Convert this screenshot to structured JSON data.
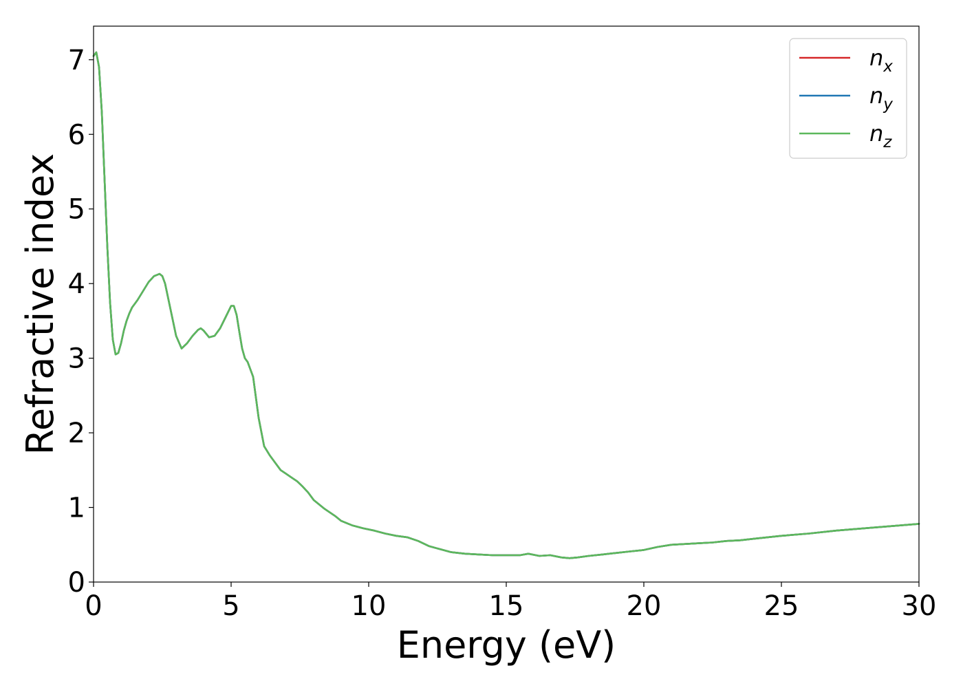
{
  "chart_data": {
    "type": "line",
    "xlabel": "Energy (eV)",
    "ylabel": "Refractive index",
    "xlim": [
      0,
      30
    ],
    "ylim": [
      0,
      7.45
    ],
    "xticks": [
      "0",
      "5",
      "10",
      "15",
      "20",
      "25",
      "30"
    ],
    "yticks": [
      "0",
      "1",
      "2",
      "3",
      "4",
      "5",
      "6",
      "7"
    ],
    "grid": false,
    "legend_position": "top-right",
    "x": [
      0,
      0.1,
      0.2,
      0.3,
      0.4,
      0.5,
      0.6,
      0.7,
      0.8,
      0.9,
      1.0,
      1.1,
      1.2,
      1.3,
      1.4,
      1.5,
      1.6,
      1.8,
      2.0,
      2.2,
      2.4,
      2.5,
      2.6,
      2.8,
      3.0,
      3.2,
      3.4,
      3.6,
      3.8,
      3.9,
      4.0,
      4.2,
      4.4,
      4.6,
      4.8,
      5.0,
      5.1,
      5.2,
      5.3,
      5.4,
      5.5,
      5.6,
      5.8,
      6.0,
      6.2,
      6.4,
      6.6,
      6.8,
      7.0,
      7.2,
      7.4,
      7.6,
      7.8,
      8.0,
      8.4,
      8.8,
      9.0,
      9.4,
      9.8,
      10.2,
      10.6,
      11.0,
      11.4,
      11.8,
      12.2,
      12.6,
      13.0,
      13.5,
      14.0,
      14.5,
      15.0,
      15.5,
      15.8,
      16.2,
      16.6,
      17.0,
      17.3,
      17.6,
      18.0,
      18.5,
      19.0,
      19.5,
      20.0,
      20.5,
      21.0,
      21.5,
      22.0,
      22.5,
      23.0,
      23.5,
      24.0,
      25.0,
      26.0,
      27.0,
      28.0,
      29.0,
      30.0
    ],
    "series": [
      {
        "name": "n_x",
        "label_base": "n",
        "label_sub": "x",
        "color": "#d62728",
        "values": [
          7.05,
          7.1,
          6.9,
          6.3,
          5.4,
          4.5,
          3.75,
          3.25,
          3.05,
          3.07,
          3.2,
          3.37,
          3.5,
          3.6,
          3.68,
          3.73,
          3.78,
          3.9,
          4.02,
          4.1,
          4.13,
          4.1,
          4.0,
          3.65,
          3.3,
          3.13,
          3.2,
          3.3,
          3.38,
          3.4,
          3.37,
          3.28,
          3.3,
          3.4,
          3.55,
          3.7,
          3.7,
          3.58,
          3.35,
          3.13,
          3.0,
          2.95,
          2.75,
          2.2,
          1.82,
          1.7,
          1.6,
          1.5,
          1.45,
          1.4,
          1.35,
          1.28,
          1.2,
          1.1,
          0.98,
          0.88,
          0.82,
          0.76,
          0.72,
          0.69,
          0.65,
          0.62,
          0.6,
          0.55,
          0.48,
          0.44,
          0.4,
          0.38,
          0.37,
          0.36,
          0.36,
          0.36,
          0.38,
          0.35,
          0.36,
          0.33,
          0.32,
          0.33,
          0.35,
          0.37,
          0.39,
          0.41,
          0.43,
          0.47,
          0.5,
          0.51,
          0.52,
          0.53,
          0.55,
          0.56,
          0.58,
          0.62,
          0.65,
          0.69,
          0.72,
          0.75,
          0.78
        ]
      },
      {
        "name": "n_y",
        "label_base": "n",
        "label_sub": "y",
        "color": "#1f77b4",
        "values": [
          7.05,
          7.1,
          6.9,
          6.3,
          5.4,
          4.5,
          3.75,
          3.25,
          3.05,
          3.07,
          3.2,
          3.37,
          3.5,
          3.6,
          3.68,
          3.73,
          3.78,
          3.9,
          4.02,
          4.1,
          4.13,
          4.1,
          4.0,
          3.65,
          3.3,
          3.13,
          3.2,
          3.3,
          3.38,
          3.4,
          3.37,
          3.28,
          3.3,
          3.4,
          3.55,
          3.7,
          3.7,
          3.58,
          3.35,
          3.13,
          3.0,
          2.95,
          2.75,
          2.2,
          1.82,
          1.7,
          1.6,
          1.5,
          1.45,
          1.4,
          1.35,
          1.28,
          1.2,
          1.1,
          0.98,
          0.88,
          0.82,
          0.76,
          0.72,
          0.69,
          0.65,
          0.62,
          0.6,
          0.55,
          0.48,
          0.44,
          0.4,
          0.38,
          0.37,
          0.36,
          0.36,
          0.36,
          0.38,
          0.35,
          0.36,
          0.33,
          0.32,
          0.33,
          0.35,
          0.37,
          0.39,
          0.41,
          0.43,
          0.47,
          0.5,
          0.51,
          0.52,
          0.53,
          0.55,
          0.56,
          0.58,
          0.62,
          0.65,
          0.69,
          0.72,
          0.75,
          0.78
        ]
      },
      {
        "name": "n_z",
        "label_base": "n",
        "label_sub": "z",
        "color": "#5cb85c",
        "values": [
          7.05,
          7.1,
          6.9,
          6.3,
          5.4,
          4.5,
          3.75,
          3.25,
          3.05,
          3.07,
          3.2,
          3.37,
          3.5,
          3.6,
          3.68,
          3.73,
          3.78,
          3.9,
          4.02,
          4.1,
          4.13,
          4.1,
          4.0,
          3.65,
          3.3,
          3.13,
          3.2,
          3.3,
          3.38,
          3.4,
          3.37,
          3.28,
          3.3,
          3.4,
          3.55,
          3.7,
          3.7,
          3.58,
          3.35,
          3.13,
          3.0,
          2.95,
          2.75,
          2.2,
          1.82,
          1.7,
          1.6,
          1.5,
          1.45,
          1.4,
          1.35,
          1.28,
          1.2,
          1.1,
          0.98,
          0.88,
          0.82,
          0.76,
          0.72,
          0.69,
          0.65,
          0.62,
          0.6,
          0.55,
          0.48,
          0.44,
          0.4,
          0.38,
          0.37,
          0.36,
          0.36,
          0.36,
          0.38,
          0.35,
          0.36,
          0.33,
          0.32,
          0.33,
          0.35,
          0.37,
          0.39,
          0.41,
          0.43,
          0.47,
          0.5,
          0.51,
          0.52,
          0.53,
          0.55,
          0.56,
          0.58,
          0.62,
          0.65,
          0.69,
          0.72,
          0.75,
          0.78
        ]
      }
    ]
  }
}
